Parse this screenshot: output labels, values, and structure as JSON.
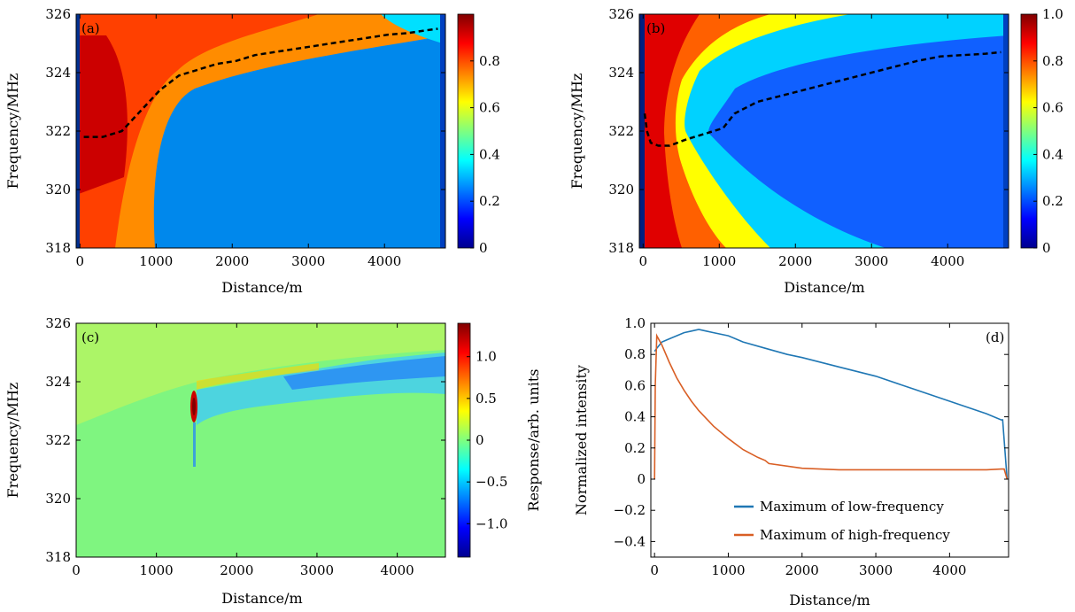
{
  "chart_data": [
    {
      "panel": "(a)",
      "type": "heatmap",
      "xlabel": "Distance/m",
      "ylabel": "Frequency/MHz",
      "xlim": [
        -50,
        4800
      ],
      "ylim": [
        318,
        326
      ],
      "xticks": [
        0,
        1000,
        2000,
        3000,
        4000
      ],
      "yticks": [
        318,
        320,
        322,
        324,
        326
      ],
      "colorbar": {
        "ticks": [
          0,
          0.2,
          0.4,
          0.6,
          0.8
        ],
        "tick_labels": [
          "0",
          "0.2",
          "0.4",
          "0.6",
          "0.8"
        ],
        "range": [
          0,
          1
        ],
        "colormap": "jet"
      },
      "overlay": {
        "style": "black dashed",
        "x": [
          50,
          300,
          550,
          800,
          1050,
          1300,
          1550,
          1800,
          2050,
          2300,
          2550,
          2800,
          3050,
          3300,
          3550,
          3800,
          4050,
          4300,
          4550,
          4700
        ],
        "y": [
          321.8,
          321.8,
          322.0,
          322.7,
          323.4,
          323.9,
          324.1,
          324.3,
          324.4,
          324.6,
          324.7,
          324.8,
          324.9,
          325.0,
          325.1,
          325.2,
          325.3,
          325.35,
          325.45,
          325.5
        ]
      }
    },
    {
      "panel": "(b)",
      "type": "heatmap",
      "xlabel": "Distance/m",
      "ylabel": "Frequency/MHz",
      "xlim": [
        -50,
        4800
      ],
      "ylim": [
        318,
        326
      ],
      "xticks": [
        0,
        1000,
        2000,
        3000,
        4000
      ],
      "yticks": [
        318,
        320,
        322,
        324,
        326
      ],
      "colorbar": {
        "ticks": [
          0,
          0.2,
          0.4,
          0.6,
          0.8,
          1.0
        ],
        "tick_labels": [
          "0",
          "0.2",
          "0.4",
          "0.6",
          "0.8",
          "1.0"
        ],
        "range": [
          0,
          1
        ],
        "colormap": "jet"
      },
      "overlay": {
        "style": "black dashed",
        "x": [
          20,
          50,
          100,
          200,
          350,
          550,
          800,
          1050,
          1200,
          1500,
          1800,
          2100,
          2400,
          2700,
          3000,
          3300,
          3600,
          3900,
          4200,
          4500,
          4700
        ],
        "y": [
          322.6,
          322.0,
          321.6,
          321.5,
          321.5,
          321.7,
          321.9,
          322.1,
          322.6,
          323.0,
          323.2,
          323.4,
          323.6,
          323.8,
          324.0,
          324.2,
          324.4,
          324.55,
          324.6,
          324.65,
          324.7
        ]
      }
    },
    {
      "panel": "(c)",
      "type": "heatmap",
      "xlabel": "Distance/m",
      "ylabel": "Frequency/MHz",
      "xlim": [
        0,
        4600
      ],
      "ylim": [
        318,
        326
      ],
      "xticks": [
        0,
        1000,
        2000,
        3000,
        4000
      ],
      "yticks": [
        318,
        320,
        322,
        324,
        326
      ],
      "colorbar": {
        "label": "Response/arb. units",
        "ticks": [
          -1.0,
          -0.5,
          0,
          0.5,
          1.0
        ],
        "tick_labels": [
          "−1.0",
          "−0.5",
          "0",
          "0.5",
          "1.0"
        ],
        "range": [
          -1.4,
          1.4
        ],
        "colormap": "jet"
      }
    },
    {
      "panel": "(d)",
      "type": "line",
      "xlabel": "Distance/m",
      "ylabel": "Normalized intensity",
      "xlim": [
        -50,
        4800
      ],
      "ylim": [
        -0.5,
        1.0
      ],
      "xticks": [
        0,
        1000,
        2000,
        3000,
        4000
      ],
      "yticks": [
        -0.4,
        -0.2,
        0,
        0.2,
        0.4,
        0.6,
        0.8,
        1.0
      ],
      "ytick_labels": [
        "−0.4",
        "−0.2",
        "0",
        "0.2",
        "0.4",
        "0.6",
        "0.8",
        "1.0"
      ],
      "legend_position": "bottom-right",
      "series": [
        {
          "name": "Maximum of low-frequency",
          "color": "#1f77b4",
          "x": [
            0,
            30,
            100,
            200,
            300,
            400,
            500,
            600,
            700,
            800,
            1000,
            1200,
            1500,
            1800,
            2000,
            2500,
            3000,
            3500,
            4000,
            4500,
            4700,
            4720,
            4780
          ],
          "y": [
            0.82,
            0.84,
            0.88,
            0.9,
            0.92,
            0.94,
            0.95,
            0.96,
            0.95,
            0.94,
            0.92,
            0.88,
            0.84,
            0.8,
            0.78,
            0.72,
            0.66,
            0.58,
            0.5,
            0.42,
            0.38,
            0.38,
            0.0
          ]
        },
        {
          "name": "Maximum of high-frequency",
          "color": "#d95f25",
          "x": [
            0,
            10,
            30,
            100,
            200,
            300,
            400,
            500,
            600,
            800,
            1000,
            1200,
            1400,
            1500,
            1550,
            2000,
            2500,
            3000,
            3500,
            4000,
            4500,
            4700,
            4740,
            4780
          ],
          "y": [
            0.0,
            0.6,
            0.92,
            0.86,
            0.75,
            0.65,
            0.57,
            0.5,
            0.44,
            0.34,
            0.26,
            0.19,
            0.14,
            0.12,
            0.1,
            0.07,
            0.06,
            0.06,
            0.06,
            0.06,
            0.06,
            0.065,
            0.065,
            0.0
          ]
        }
      ]
    }
  ]
}
